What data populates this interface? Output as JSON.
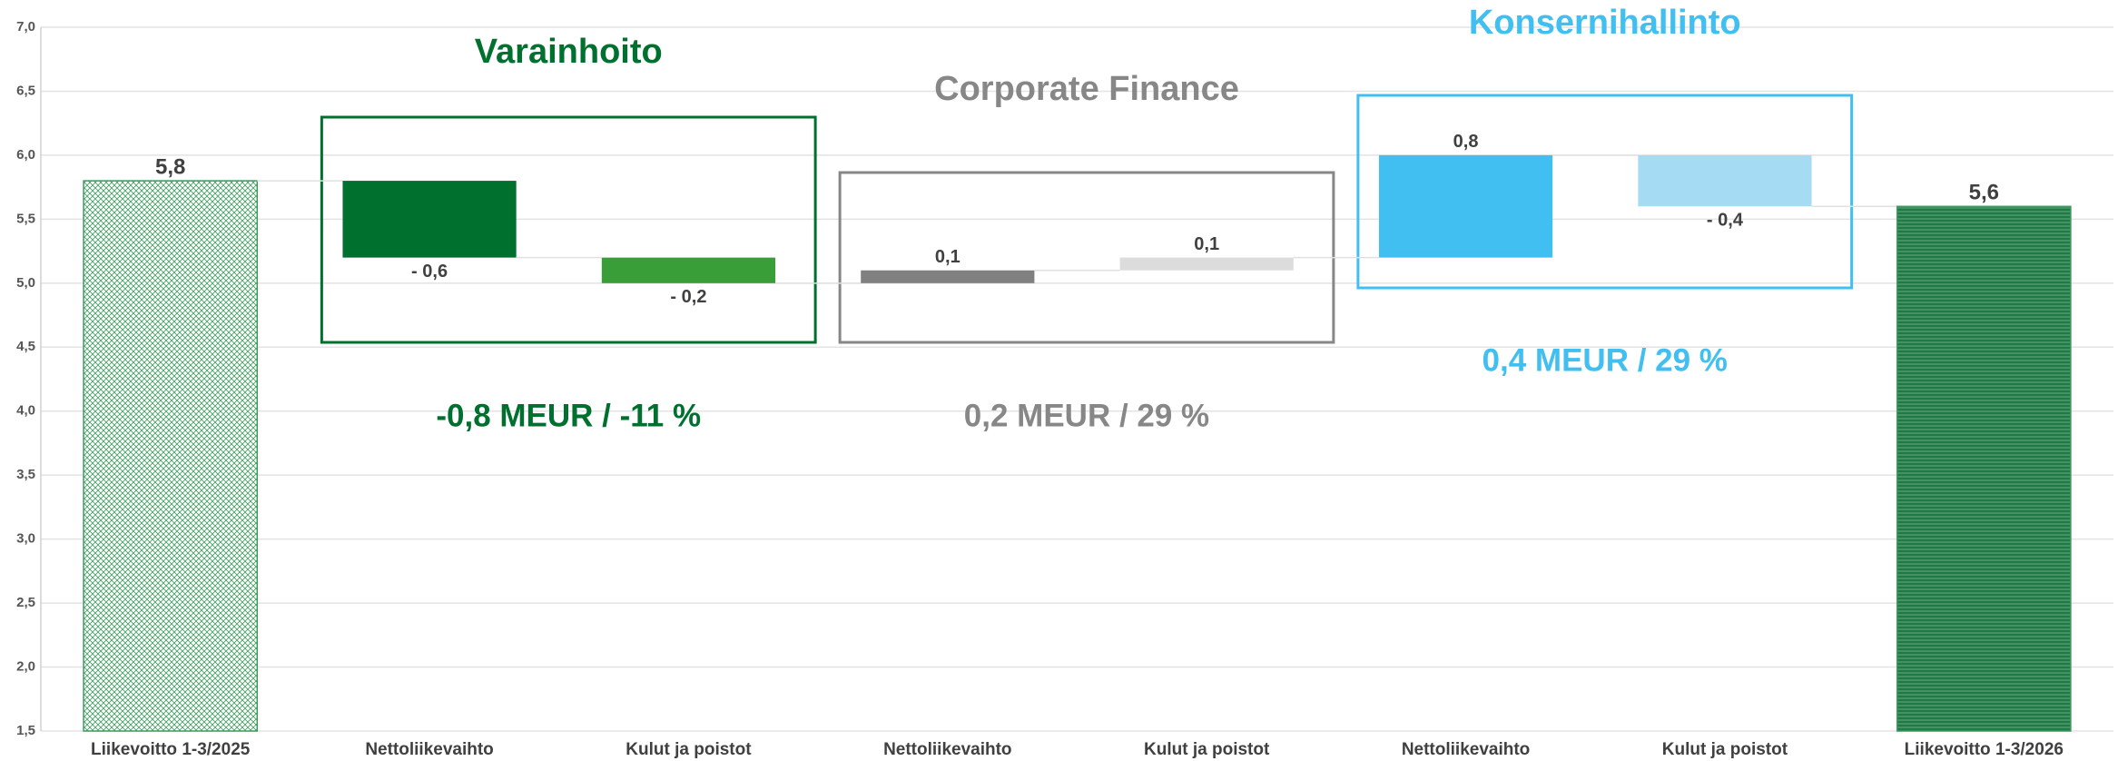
{
  "chart_data": {
    "type": "waterfall",
    "categories": [
      "Liikevoitto 1-3/2025",
      "Nettoliikevaihto",
      "Kulut ja poistot",
      "Nettoliikevaihto",
      "Kulut ja poistot",
      "Nettoliikevaihto",
      "Kulut ja poistot",
      "Liikevoitto 1-3/2026"
    ],
    "values": [
      5.8,
      -0.6,
      -0.2,
      0.1,
      0.1,
      0.8,
      -0.4,
      5.6
    ],
    "value_labels": [
      "5,8",
      "- 0,6",
      "- 0,2",
      "0,1",
      "0,1",
      "0,8",
      "- 0,4",
      "5,6"
    ],
    "measures": [
      "absolute",
      "relative",
      "relative",
      "relative",
      "relative",
      "relative",
      "relative",
      "total"
    ],
    "colors": [
      "url(#hatchLight)",
      "#00702f",
      "#3a9e38",
      "#808080",
      "#dcdcdc",
      "#41bff0",
      "#a6dcf3",
      "url(#hatchDark)"
    ],
    "ylim": [
      1.5,
      7.0
    ],
    "yticks": [
      {
        "value": 1.5,
        "label": "1,5"
      },
      {
        "value": 2.0,
        "label": "2,0"
      },
      {
        "value": 2.5,
        "label": "2,5"
      },
      {
        "value": 3.0,
        "label": "3,0"
      },
      {
        "value": 3.5,
        "label": "3,5"
      },
      {
        "value": 4.0,
        "label": "4,0"
      },
      {
        "value": 4.5,
        "label": "4,5"
      },
      {
        "value": 5.0,
        "label": "5,0"
      },
      {
        "value": 5.5,
        "label": "5,5"
      },
      {
        "value": 6.0,
        "label": "6,0"
      },
      {
        "value": 6.5,
        "label": "6,5"
      },
      {
        "value": 7.0,
        "label": "7,0"
      }
    ],
    "grid": true,
    "groups": [
      {
        "title": "Varainhoito",
        "summary": "-0,8 MEUR / -11 %",
        "color": "#00702f"
      },
      {
        "title": "Corporate Finance",
        "summary": "0,2 MEUR / 29 %",
        "color": "#878787"
      },
      {
        "title": "Konsernihallinto",
        "summary": "0,4 MEUR / 29 %",
        "color": "#41bff0"
      }
    ]
  }
}
